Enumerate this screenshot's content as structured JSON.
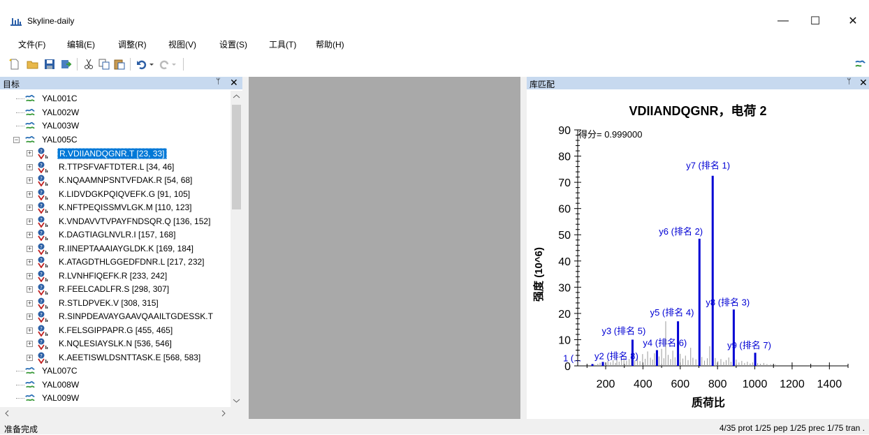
{
  "window": {
    "title": "Skyline-daily",
    "minimize": "—",
    "maximize": "☐",
    "close": "✕"
  },
  "menu": [
    "文件(F)",
    "编辑(E)",
    "调整(R)",
    "视图(V)",
    "设置(S)",
    "工具(T)",
    "帮助(H)"
  ],
  "targets_pane": {
    "title": "目标",
    "pin": "ᛘ",
    "close": "✕",
    "items": [
      {
        "type": "protein",
        "label": "YAL001C",
        "expander": ""
      },
      {
        "type": "protein",
        "label": "YAL002W",
        "expander": ""
      },
      {
        "type": "protein",
        "label": "YAL003W",
        "expander": ""
      },
      {
        "type": "protein",
        "label": "YAL005C",
        "expander": "−"
      },
      {
        "type": "peptide",
        "label": "R.VDIIANDQGNR.T [23, 33]",
        "expander": "+",
        "selected": true
      },
      {
        "type": "peptide",
        "label": "R.TTPSFVAFTDTER.L [34, 46]",
        "expander": "+"
      },
      {
        "type": "peptide",
        "label": "K.NQAAMNPSNTVFDAK.R [54, 68]",
        "expander": "+"
      },
      {
        "type": "peptide",
        "label": "K.LIDVDGKPQIQVEFK.G [91, 105]",
        "expander": "+"
      },
      {
        "type": "peptide",
        "label": "K.NFTPEQISSMVLGK.M [110, 123]",
        "expander": "+"
      },
      {
        "type": "peptide",
        "label": "K.VNDAVVTVPAYFNDSQR.Q [136, 152]",
        "expander": "+"
      },
      {
        "type": "peptide",
        "label": "K.DAGTIAGLNVLR.I [157, 168]",
        "expander": "+"
      },
      {
        "type": "peptide",
        "label": "R.IINEPTAAAIAYGLDK.K [169, 184]",
        "expander": "+"
      },
      {
        "type": "peptide",
        "label": "K.ATAGDTHLGGEDFDNR.L [217, 232]",
        "expander": "+"
      },
      {
        "type": "peptide",
        "label": "R.LVNHFIQEFK.R [233, 242]",
        "expander": "+"
      },
      {
        "type": "peptide",
        "label": "R.FEELCADLFR.S [298, 307]",
        "expander": "+"
      },
      {
        "type": "peptide",
        "label": "R.STLDPVEK.V [308, 315]",
        "expander": "+"
      },
      {
        "type": "peptide",
        "label": "R.SINPDEAVAYGAAVQAAILTGDESSK.T",
        "expander": "+"
      },
      {
        "type": "peptide",
        "label": "K.FELSGIPPAPR.G [455, 465]",
        "expander": "+"
      },
      {
        "type": "peptide",
        "label": "K.NQLESIAYSLK.N [536, 546]",
        "expander": "+"
      },
      {
        "type": "peptide",
        "label": "K.AEETISWLDSNTTASK.E [568, 583]",
        "expander": "+"
      },
      {
        "type": "protein",
        "label": "YAL007C",
        "expander": ""
      },
      {
        "type": "protein",
        "label": "YAL008W",
        "expander": ""
      },
      {
        "type": "protein",
        "label": "YAL009W",
        "expander": ""
      }
    ]
  },
  "library_pane": {
    "title": "库匹配",
    "pin": "ᛘ",
    "close": "✕"
  },
  "chart_data": {
    "type": "bar",
    "title": "VDIIANDQGNR，电荷 2",
    "xlabel": "质荷比",
    "ylabel": "强度 (10^6)",
    "xlim": [
      50,
      1500
    ],
    "ylim": [
      0,
      90
    ],
    "xticks": [
      200,
      400,
      600,
      800,
      1000,
      1200,
      1400
    ],
    "yticks": [
      0,
      10,
      20,
      30,
      40,
      50,
      60,
      70,
      80,
      90
    ],
    "score_text": "得分= 0.999000",
    "matched_peaks": [
      {
        "mz": 129,
        "intensity": 0.7,
        "label": "1 (..."
      },
      {
        "mz": 185,
        "intensity": 1.5,
        "label": "y2 (排名 8)"
      },
      {
        "mz": 344,
        "intensity": 10,
        "label": "y3 (排名 5)"
      },
      {
        "mz": 475,
        "intensity": 6,
        "label": "y4 (排名 6)"
      },
      {
        "mz": 588,
        "intensity": 17,
        "label": "y5 (排名 4)"
      },
      {
        "mz": 703,
        "intensity": 48.5,
        "label": "y6 (排名 2)"
      },
      {
        "mz": 774,
        "intensity": 72.5,
        "label": "y7 (排名 1)"
      },
      {
        "mz": 887,
        "intensity": 21.5,
        "label": "y8 (排名 3)"
      },
      {
        "mz": 1002,
        "intensity": 5,
        "label": "y9 (排名 7)"
      }
    ],
    "unmatched_peaks": [
      [
        140,
        0.5
      ],
      [
        158,
        0.8
      ],
      [
        170,
        1.2
      ],
      [
        198,
        0.9
      ],
      [
        212,
        2.0
      ],
      [
        226,
        1.4
      ],
      [
        240,
        2.2
      ],
      [
        253,
        1.1
      ],
      [
        260,
        3.0
      ],
      [
        272,
        1.6
      ],
      [
        285,
        2.4
      ],
      [
        298,
        3.2
      ],
      [
        312,
        1.9
      ],
      [
        326,
        2.6
      ],
      [
        338,
        4.0
      ],
      [
        356,
        2.1
      ],
      [
        370,
        3.5
      ],
      [
        384,
        1.8
      ],
      [
        398,
        4.5
      ],
      [
        412,
        2.7
      ],
      [
        425,
        5.5
      ],
      [
        440,
        3.1
      ],
      [
        452,
        2.4
      ],
      [
        462,
        4.8
      ],
      [
        486,
        3.6
      ],
      [
        500,
        6.5
      ],
      [
        512,
        2.9
      ],
      [
        522,
        17.0
      ],
      [
        535,
        4.2
      ],
      [
        548,
        2.6
      ],
      [
        560,
        5.8
      ],
      [
        572,
        3.3
      ],
      [
        600,
        4.6
      ],
      [
        614,
        2.8
      ],
      [
        628,
        3.9
      ],
      [
        642,
        2.2
      ],
      [
        656,
        6.9
      ],
      [
        668,
        3.1
      ],
      [
        684,
        2.5
      ],
      [
        716,
        3.4
      ],
      [
        730,
        2.0
      ],
      [
        745,
        2.9
      ],
      [
        758,
        7.5
      ],
      [
        788,
        3.0
      ],
      [
        802,
        1.8
      ],
      [
        818,
        2.6
      ],
      [
        833,
        1.5
      ],
      [
        846,
        2.2
      ],
      [
        860,
        3.2
      ],
      [
        872,
        1.6
      ],
      [
        900,
        2.4
      ],
      [
        915,
        1.3
      ],
      [
        930,
        1.9
      ],
      [
        945,
        1.1
      ],
      [
        960,
        1.6
      ],
      [
        975,
        0.9
      ],
      [
        988,
        1.3
      ],
      [
        1015,
        1.0
      ],
      [
        1030,
        0.8
      ],
      [
        1048,
        1.1
      ],
      [
        1065,
        0.7
      ],
      [
        1085,
        0.6
      ],
      [
        1110,
        0.5
      ]
    ]
  },
  "status": {
    "left": "准备完成",
    "right": "4/35 prot  1/25 pep  1/25 prec  1/75 tran  ."
  }
}
